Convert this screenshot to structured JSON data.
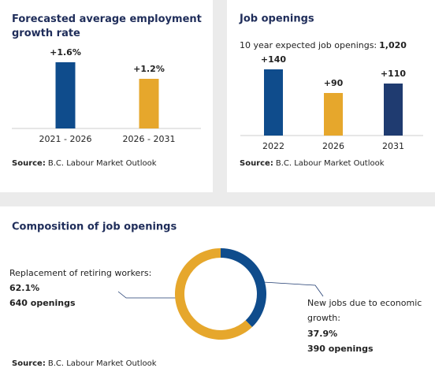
{
  "chart_data": [
    {
      "type": "bar",
      "title": "Forecasted average employment growth rate",
      "categories": [
        "2021 - 2026",
        "2026 - 2031"
      ],
      "values": [
        1.6,
        1.2
      ],
      "value_labels": [
        "+1.6%",
        "+1.2%"
      ],
      "colors": [
        "#0f4c8c",
        "#e6a72c"
      ],
      "source_label": "Source:",
      "source": "B.C. Labour Market Outlook"
    },
    {
      "type": "bar",
      "title": "Job openings",
      "subtitle": "10 year expected job openings:",
      "total": "1,020",
      "categories": [
        "2022",
        "2026",
        "2031"
      ],
      "values": [
        140,
        90,
        110
      ],
      "value_labels": [
        "+140",
        "+90",
        "+110"
      ],
      "colors": [
        "#0f4c8c",
        "#e6a72c",
        "#1f3b70"
      ],
      "source_label": "Source:",
      "source": "B.C. Labour Market Outlook"
    },
    {
      "type": "donut",
      "title": "Composition of job openings",
      "categories": [
        "Replacement of retiring workers:",
        "New jobs due to economic growth:"
      ],
      "values": [
        62.1,
        37.9
      ],
      "value_labels": [
        "62.1%",
        "37.9%"
      ],
      "count_labels": [
        "640 openings",
        "390 openings"
      ],
      "colors": [
        "#e6a72c",
        "#0f4c8c"
      ],
      "source_label": "Source:",
      "source": "B.C. Labour Market Outlook"
    }
  ]
}
